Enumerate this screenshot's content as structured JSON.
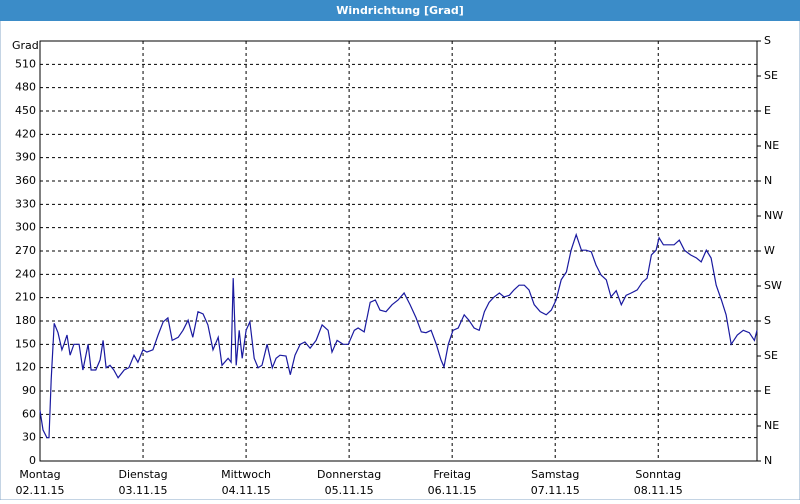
{
  "chart_data": {
    "type": "line",
    "title": "Windrichtung [Grad]",
    "y_label": "Grad",
    "xlim": [
      0,
      167
    ],
    "xticks": [
      {
        "value": 0,
        "label": "Montag"
      },
      {
        "value": 24,
        "label": "Dienstag"
      },
      {
        "value": 48,
        "label": "Mittwoch"
      },
      {
        "value": 72,
        "label": "Donnerstag"
      },
      {
        "value": 96,
        "label": "Freitag"
      },
      {
        "value": 120,
        "label": "Samstag"
      },
      {
        "value": 144,
        "label": "Sonntag"
      }
    ],
    "xtick_dates": [
      "02.11.15",
      "03.11.15",
      "04.11.15",
      "05.11.15",
      "06.11.15",
      "07.11.15",
      "08.11.15"
    ],
    "ylim": [
      0,
      540
    ],
    "yticks": [
      0,
      30,
      60,
      90,
      120,
      150,
      180,
      210,
      240,
      270,
      300,
      330,
      360,
      390,
      420,
      450,
      480,
      510
    ],
    "y2lim": [
      0,
      540
    ],
    "y2ticks": [
      {
        "value": 0,
        "label": "N"
      },
      {
        "value": 45,
        "label": "NE"
      },
      {
        "value": 90,
        "label": "E"
      },
      {
        "value": 135,
        "label": "SE"
      },
      {
        "value": 180,
        "label": "S"
      },
      {
        "value": 225,
        "label": "SW"
      },
      {
        "value": 270,
        "label": "W"
      },
      {
        "value": 315,
        "label": "NW"
      },
      {
        "value": 360,
        "label": "N"
      },
      {
        "value": 405,
        "label": "NE"
      },
      {
        "value": 450,
        "label": "E"
      },
      {
        "value": 495,
        "label": "SE"
      },
      {
        "value": 540,
        "label": "S"
      }
    ],
    "grid": true,
    "x": [
      0,
      0.7,
      1.6,
      2.1,
      2.6,
      3.3,
      4.2,
      5.1,
      5.6,
      6.3,
      7.0,
      7.9,
      9.1,
      10.0,
      11.2,
      11.9,
      13.0,
      14.0,
      14.7,
      15.4,
      16.3,
      17.2,
      18.2,
      19.6,
      20.7,
      21.9,
      22.8,
      24.0,
      24.9,
      26.3,
      27.5,
      28.7,
      29.8,
      30.8,
      32.2,
      33.3,
      34.5,
      35.6,
      36.8,
      38.0,
      39.1,
      40.3,
      41.5,
      42.4,
      43.8,
      44.5,
      45.0,
      45.7,
      46.4,
      47.1,
      48.0,
      48.9,
      49.9,
      50.8,
      51.7,
      52.9,
      54.1,
      55.0,
      55.9,
      57.3,
      58.3,
      59.4,
      60.6,
      61.7,
      62.9,
      64.3,
      65.7,
      67.1,
      68.0,
      69.2,
      70.6,
      71.8,
      73.2,
      74.1,
      75.5,
      76.9,
      78.1,
      79.2,
      80.6,
      82.0,
      83.4,
      84.8,
      86.2,
      87.6,
      88.8,
      89.9,
      91.1,
      92.3,
      93.4,
      94.1,
      95.1,
      96.2,
      97.4,
      98.8,
      99.9,
      101.1,
      102.3,
      103.5,
      104.6,
      105.8,
      107.0,
      108.1,
      109.3,
      110.4,
      111.6,
      112.8,
      113.9,
      115.1,
      116.5,
      117.9,
      119.1,
      120.2,
      121.4,
      122.6,
      123.7,
      124.9,
      126.1,
      127.2,
      128.4,
      129.5,
      130.7,
      131.9,
      133.0,
      134.2,
      135.4,
      136.5,
      137.7,
      139.1,
      140.3,
      141.4,
      142.4,
      143.5,
      144.2,
      145.2,
      146.3,
      147.7,
      148.9,
      150.1,
      151.5,
      152.9,
      154.0,
      155.2,
      156.3,
      157.5,
      158.7,
      159.8,
      161.0,
      162.4,
      163.8,
      165.2,
      166.4,
      167
    ],
    "series": [
      {
        "name": "Windrichtung",
        "color": "#1a1aa0",
        "values": [
          65,
          40,
          30,
          30,
          105,
          177,
          165,
          143,
          150,
          162,
          136,
          150,
          150,
          117,
          150,
          117,
          117,
          130,
          155,
          120,
          123,
          117,
          107,
          117,
          120,
          136,
          127,
          143,
          140,
          143,
          162,
          179,
          184,
          155,
          159,
          168,
          181,
          159,
          192,
          189,
          175,
          143,
          159,
          123,
          132,
          127,
          235,
          123,
          168,
          132,
          168,
          179,
          132,
          120,
          123,
          150,
          120,
          132,
          136,
          135,
          111,
          136,
          150,
          153,
          145,
          155,
          175,
          168,
          140,
          155,
          150,
          150,
          168,
          171,
          166,
          204,
          207,
          194,
          192,
          201,
          207,
          216,
          201,
          184,
          166,
          165,
          168,
          150,
          130,
          121,
          150,
          168,
          171,
          188,
          181,
          171,
          168,
          192,
          204,
          211,
          216,
          211,
          213,
          220,
          226,
          226,
          220,
          201,
          192,
          188,
          194,
          207,
          233,
          243,
          271,
          291,
          271,
          271,
          269,
          252,
          239,
          233,
          211,
          219,
          201,
          213,
          216,
          220,
          230,
          235,
          265,
          271,
          287,
          278,
          278,
          278,
          284,
          271,
          265,
          261,
          256,
          271,
          261,
          226,
          207,
          188,
          150,
          162,
          168,
          165,
          155,
          168
        ]
      }
    ]
  }
}
